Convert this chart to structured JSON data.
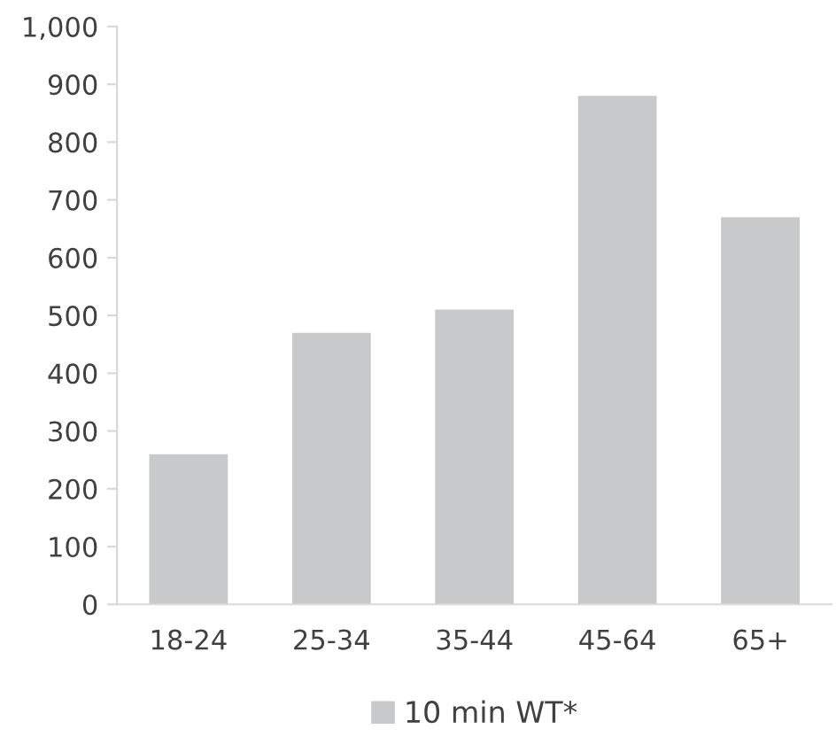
{
  "chart_data": {
    "type": "bar",
    "categories": [
      "18-24",
      "25-34",
      "35-44",
      "45-64",
      "65+"
    ],
    "series": [
      {
        "name": "10 min WT*",
        "color": "#c8c9cb",
        "values": [
          260,
          470,
          510,
          880,
          670
        ]
      }
    ],
    "ylim": [
      0,
      1000
    ],
    "yticks": [
      0,
      100,
      200,
      300,
      400,
      500,
      600,
      700,
      800,
      900,
      {
        "value": 1000,
        "label": "1,000"
      }
    ],
    "grid": false,
    "legend": "bottom"
  }
}
